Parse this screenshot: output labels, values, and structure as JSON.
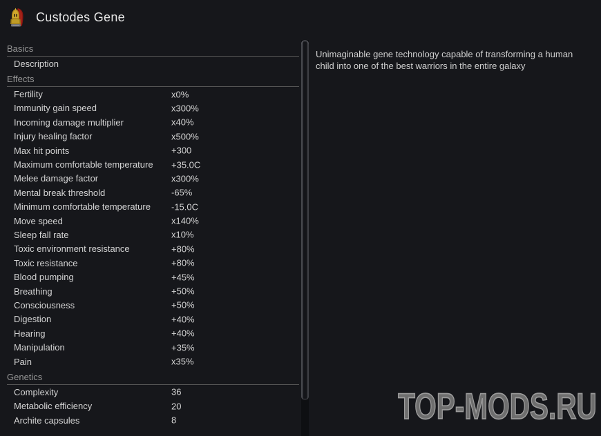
{
  "window": {
    "title": "Custodes Gene",
    "icon": "custodes-helmet-icon"
  },
  "description_panel": {
    "text": "Unimaginable gene technology capable of transforming a human child into one of the best warriors in the entire galaxy"
  },
  "stats_panel": {
    "sections": [
      {
        "label": "Basics",
        "rows": [
          {
            "label": "Description",
            "value": ""
          }
        ]
      },
      {
        "label": "Effects",
        "rows": [
          {
            "label": "Fertility",
            "value": "x0%"
          },
          {
            "label": "Immunity gain speed",
            "value": "x300%"
          },
          {
            "label": "Incoming damage multiplier",
            "value": "x40%"
          },
          {
            "label": "Injury healing factor",
            "value": "x500%"
          },
          {
            "label": "Max hit points",
            "value": "+300"
          },
          {
            "label": "Maximum comfortable temperature",
            "value": "+35.0C"
          },
          {
            "label": "Melee damage factor",
            "value": "x300%"
          },
          {
            "label": "Mental break threshold",
            "value": "-65%"
          },
          {
            "label": "Minimum comfortable temperature",
            "value": "-15.0C"
          },
          {
            "label": "Move speed",
            "value": "x140%"
          },
          {
            "label": "Sleep fall rate",
            "value": "x10%"
          },
          {
            "label": "Toxic environment resistance",
            "value": "+80%"
          },
          {
            "label": "Toxic resistance",
            "value": "+80%"
          },
          {
            "label": "Blood pumping",
            "value": "+45%"
          },
          {
            "label": "Breathing",
            "value": "+50%"
          },
          {
            "label": "Consciousness",
            "value": "+50%"
          },
          {
            "label": "Digestion",
            "value": "+40%"
          },
          {
            "label": "Hearing",
            "value": "+40%"
          },
          {
            "label": "Manipulation",
            "value": "+35%"
          },
          {
            "label": "Pain",
            "value": "x35%"
          }
        ]
      },
      {
        "label": "Genetics",
        "rows": [
          {
            "label": "Complexity",
            "value": "36"
          },
          {
            "label": "Metabolic efficiency",
            "value": "20"
          },
          {
            "label": "Archite capsules",
            "value": "8"
          }
        ]
      }
    ]
  },
  "watermark": {
    "text": "TOP-MODS.RU"
  },
  "colors": {
    "background": "#16171b",
    "title_text": "#e6e6e6",
    "section_header": "#969696",
    "row_text": "#d4d4d4",
    "divider": "#565656",
    "scroll_track": "#0e0f12",
    "scroll_thumb": "#141519",
    "watermark_fill": "#6e6e6e",
    "watermark_outline": "#9c9c9c",
    "icon_helmet_gold": "#c9a227",
    "icon_cape_red": "#8a1510"
  }
}
